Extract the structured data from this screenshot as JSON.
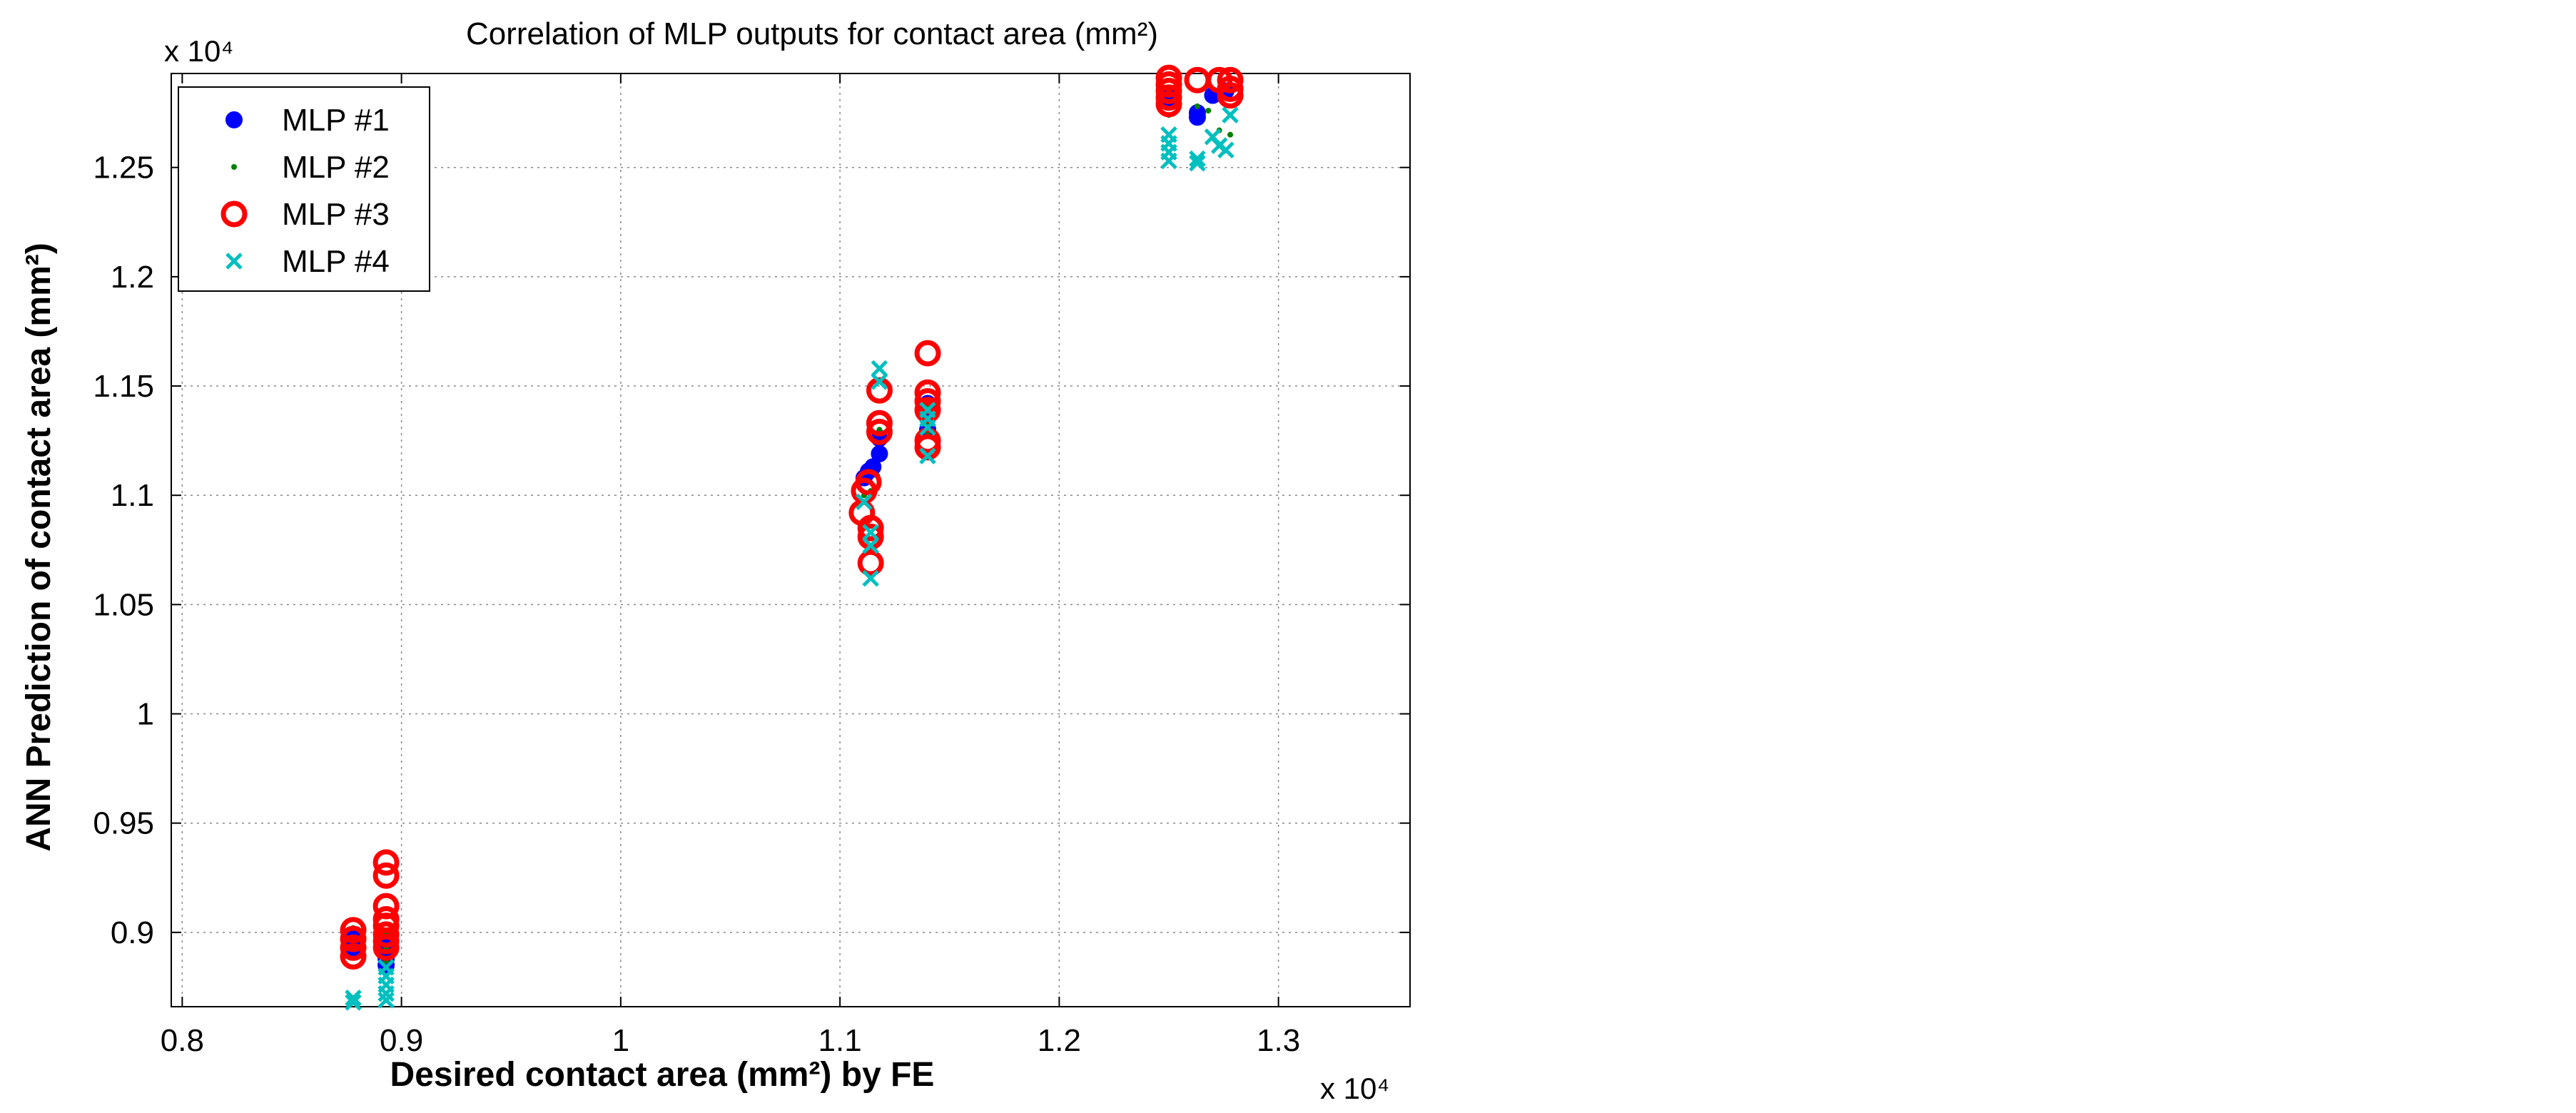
{
  "chart_data": {
    "type": "scatter",
    "title": "Correlation of MLP outputs for contact area (mm²)",
    "xlabel": "Desired contact area (mm²) by FE",
    "ylabel": "ANN Prediction of contact area (mm²)",
    "x_multiplier_label": "x 10⁴",
    "y_multiplier_label": "x 10⁴",
    "xlim": [
      0.795,
      1.36
    ],
    "ylim": [
      0.866,
      1.293
    ],
    "x_ticks": [
      0.8,
      0.9,
      1,
      1.1,
      1.2,
      1.3
    ],
    "x_tick_labels": [
      "0.8",
      "0.9",
      "1",
      "1.1",
      "1.2",
      "1.3"
    ],
    "y_ticks": [
      0.9,
      0.95,
      1,
      1.05,
      1.1,
      1.15,
      1.2,
      1.25
    ],
    "y_tick_labels": [
      "0.9",
      "0.95",
      "1",
      "1.05",
      "1.1",
      "1.15",
      "1.2",
      "1.25"
    ],
    "grid": true,
    "legend_position": "top-left",
    "series": [
      {
        "name": "MLP #1",
        "marker": "filled-circle",
        "color": "#0000ff",
        "points": [
          [
            0.878,
            0.891
          ],
          [
            0.878,
            0.895
          ],
          [
            0.878,
            0.899
          ],
          [
            0.893,
            0.885
          ],
          [
            0.893,
            0.888
          ],
          [
            0.893,
            0.891
          ],
          [
            0.893,
            0.894
          ],
          [
            1.111,
            1.108
          ],
          [
            1.113,
            1.111
          ],
          [
            1.115,
            1.113
          ],
          [
            1.118,
            1.119
          ],
          [
            1.118,
            1.126
          ],
          [
            1.14,
            1.13
          ],
          [
            1.14,
            1.136
          ],
          [
            1.14,
            1.142
          ],
          [
            1.25,
            1.28
          ],
          [
            1.25,
            1.284
          ],
          [
            1.263,
            1.273
          ],
          [
            1.263,
            1.275
          ],
          [
            1.27,
            1.283
          ],
          [
            1.276,
            1.285
          ]
        ]
      },
      {
        "name": "MLP #2",
        "marker": "dot",
        "color": "#008000",
        "points": [
          [
            0.878,
            0.902
          ],
          [
            0.878,
            0.897
          ],
          [
            0.893,
            0.899
          ],
          [
            0.893,
            0.893
          ],
          [
            0.893,
            0.887
          ],
          [
            1.111,
            1.1
          ],
          [
            1.114,
            1.102
          ],
          [
            1.117,
            1.109
          ],
          [
            1.118,
            1.13
          ],
          [
            1.14,
            1.133
          ],
          [
            1.14,
            1.128
          ],
          [
            1.14,
            1.141
          ],
          [
            1.25,
            1.274
          ],
          [
            1.25,
            1.284
          ],
          [
            1.263,
            1.278
          ],
          [
            1.268,
            1.276
          ],
          [
            1.273,
            1.267
          ],
          [
            1.278,
            1.265
          ]
        ]
      },
      {
        "name": "MLP #3",
        "marker": "open-circle",
        "color": "#ff0000",
        "points": [
          [
            0.878,
            0.889
          ],
          [
            0.878,
            0.893
          ],
          [
            0.878,
            0.897
          ],
          [
            0.878,
            0.901
          ],
          [
            0.893,
            0.932
          ],
          [
            0.893,
            0.926
          ],
          [
            0.893,
            0.912
          ],
          [
            0.893,
            0.906
          ],
          [
            0.893,
            0.903
          ],
          [
            0.893,
            0.899
          ],
          [
            0.893,
            0.896
          ],
          [
            0.893,
            0.893
          ],
          [
            1.11,
            1.092
          ],
          [
            1.111,
            1.102
          ],
          [
            1.113,
            1.106
          ],
          [
            1.114,
            1.085
          ],
          [
            1.114,
            1.081
          ],
          [
            1.114,
            1.069
          ],
          [
            1.118,
            1.148
          ],
          [
            1.118,
            1.133
          ],
          [
            1.118,
            1.129
          ],
          [
            1.14,
            1.165
          ],
          [
            1.14,
            1.147
          ],
          [
            1.14,
            1.143
          ],
          [
            1.14,
            1.139
          ],
          [
            1.14,
            1.125
          ],
          [
            1.14,
            1.122
          ],
          [
            1.25,
            1.291
          ],
          [
            1.25,
            1.288
          ],
          [
            1.25,
            1.285
          ],
          [
            1.25,
            1.282
          ],
          [
            1.25,
            1.279
          ],
          [
            1.263,
            1.29
          ],
          [
            1.273,
            1.29
          ],
          [
            1.278,
            1.29
          ],
          [
            1.278,
            1.286
          ],
          [
            1.278,
            1.283
          ]
        ]
      },
      {
        "name": "MLP #4",
        "marker": "x",
        "color": "#00bfbf",
        "points": [
          [
            0.878,
            0.87
          ],
          [
            0.878,
            0.868
          ],
          [
            0.893,
            0.884
          ],
          [
            0.893,
            0.88
          ],
          [
            0.893,
            0.876
          ],
          [
            0.893,
            0.872
          ],
          [
            0.893,
            0.869
          ],
          [
            1.111,
            1.097
          ],
          [
            1.114,
            1.083
          ],
          [
            1.114,
            1.077
          ],
          [
            1.114,
            1.062
          ],
          [
            1.118,
            1.158
          ],
          [
            1.118,
            1.152
          ],
          [
            1.14,
            1.118
          ],
          [
            1.14,
            1.131
          ],
          [
            1.14,
            1.135
          ],
          [
            1.14,
            1.139
          ],
          [
            1.25,
            1.253
          ],
          [
            1.25,
            1.257
          ],
          [
            1.25,
            1.261
          ],
          [
            1.25,
            1.265
          ],
          [
            1.263,
            1.252
          ],
          [
            1.263,
            1.254
          ],
          [
            1.27,
            1.264
          ],
          [
            1.273,
            1.26
          ],
          [
            1.276,
            1.258
          ],
          [
            1.278,
            1.274
          ]
        ]
      }
    ]
  }
}
